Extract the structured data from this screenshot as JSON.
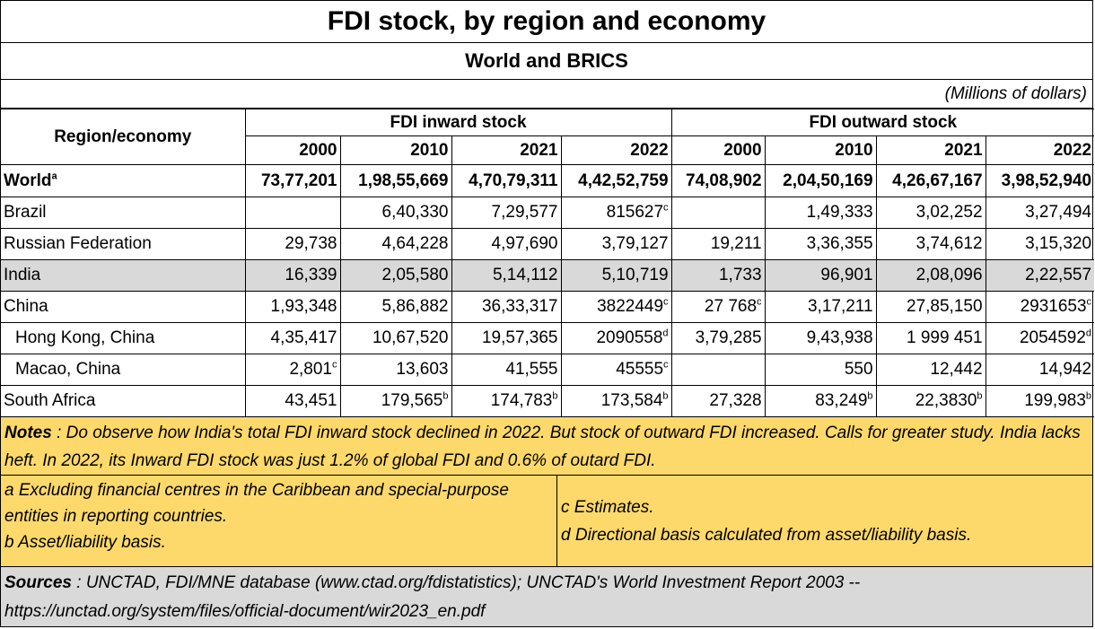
{
  "title": "FDI stock, by region and economy",
  "subtitle": "World and BRICS",
  "units": "(Millions of dollars)",
  "headers": {
    "region": "Region/economy",
    "inward": "FDI inward stock",
    "outward": "FDI outward stock",
    "years": [
      "2000",
      "2010",
      "2021",
      "2022",
      "2000",
      "2010",
      "2021",
      "2022"
    ]
  },
  "rows": [
    {
      "name": "World",
      "sup": "a",
      "cells": [
        {
          "v": "73,77,201",
          "s": ""
        },
        {
          "v": "1,98,55,669",
          "s": ""
        },
        {
          "v": "4,70,79,311",
          "s": ""
        },
        {
          "v": "4,42,52,759",
          "s": ""
        },
        {
          "v": "74,08,902",
          "s": ""
        },
        {
          "v": "2,04,50,169",
          "s": ""
        },
        {
          "v": "4,26,67,167",
          "s": ""
        },
        {
          "v": "3,98,52,940",
          "s": ""
        }
      ]
    },
    {
      "name": "Brazil",
      "sup": "",
      "cells": [
        {
          "v": "",
          "s": ""
        },
        {
          "v": "6,40,330",
          "s": ""
        },
        {
          "v": "7,29,577",
          "s": ""
        },
        {
          "v": "815627",
          "s": "c"
        },
        {
          "v": "",
          "s": ""
        },
        {
          "v": "1,49,333",
          "s": ""
        },
        {
          "v": "3,02,252",
          "s": ""
        },
        {
          "v": "3,27,494",
          "s": ""
        }
      ]
    },
    {
      "name": "Russian Federation",
      "sup": "",
      "cells": [
        {
          "v": "29,738",
          "s": ""
        },
        {
          "v": "4,64,228",
          "s": ""
        },
        {
          "v": "4,97,690",
          "s": ""
        },
        {
          "v": "3,79,127",
          "s": ""
        },
        {
          "v": "19,211",
          "s": ""
        },
        {
          "v": "3,36,355",
          "s": ""
        },
        {
          "v": "3,74,612",
          "s": ""
        },
        {
          "v": "3,15,320",
          "s": ""
        }
      ]
    },
    {
      "name": "India",
      "sup": "",
      "cells": [
        {
          "v": "16,339",
          "s": ""
        },
        {
          "v": "2,05,580",
          "s": ""
        },
        {
          "v": "5,14,112",
          "s": ""
        },
        {
          "v": "5,10,719",
          "s": ""
        },
        {
          "v": "1,733",
          "s": ""
        },
        {
          "v": "96,901",
          "s": ""
        },
        {
          "v": "2,08,096",
          "s": ""
        },
        {
          "v": "2,22,557",
          "s": ""
        }
      ]
    },
    {
      "name": "China",
      "sup": "",
      "cells": [
        {
          "v": "1,93,348",
          "s": ""
        },
        {
          "v": "5,86,882",
          "s": ""
        },
        {
          "v": "36,33,317",
          "s": ""
        },
        {
          "v": "3822449",
          "s": "c"
        },
        {
          "v": "27 768",
          "s": "c"
        },
        {
          "v": "3,17,211",
          "s": ""
        },
        {
          "v": "27,85,150",
          "s": ""
        },
        {
          "v": "2931653",
          "s": "c"
        }
      ]
    },
    {
      "name": "Hong Kong, China",
      "sup": "",
      "cells": [
        {
          "v": "4,35,417",
          "s": ""
        },
        {
          "v": "10,67,520",
          "s": ""
        },
        {
          "v": "19,57,365",
          "s": ""
        },
        {
          "v": "2090558",
          "s": "d"
        },
        {
          "v": "3,79,285",
          "s": ""
        },
        {
          "v": "9,43,938",
          "s": ""
        },
        {
          "v": "1 999 451",
          "s": ""
        },
        {
          "v": "2054592",
          "s": "d"
        }
      ]
    },
    {
      "name": "Macao, China",
      "sup": "",
      "cells": [
        {
          "v": "2,801",
          "s": "c"
        },
        {
          "v": "13,603",
          "s": ""
        },
        {
          "v": "41,555",
          "s": ""
        },
        {
          "v": "45555",
          "s": "c"
        },
        {
          "v": "",
          "s": ""
        },
        {
          "v": "550",
          "s": ""
        },
        {
          "v": "12,442",
          "s": ""
        },
        {
          "v": "14,942",
          "s": ""
        }
      ]
    },
    {
      "name": "South Africa",
      "sup": "",
      "cells": [
        {
          "v": "43,451",
          "s": ""
        },
        {
          "v": "179,565",
          "s": "b"
        },
        {
          "v": "174,783",
          "s": "b"
        },
        {
          "v": "173,584",
          "s": "b"
        },
        {
          "v": "27,328",
          "s": ""
        },
        {
          "v": "83,249",
          "s": "b"
        },
        {
          "v": "22,3830",
          "s": "b"
        },
        {
          "v": "199,983",
          "s": "b"
        }
      ]
    }
  ],
  "notes": {
    "label": "Notes",
    "text": " : Do observe how India's total FDI inward stock declined in 2022.  But stock of outward FDI increased.  Calls for greater study.  India lacks heft.  In 2022, its Inward FDI stock was just 1.2% of global FDI and 0.6% of outard FDI."
  },
  "footnotes": {
    "a": "a Excluding financial centres in the Caribbean and special-purpose entities in reporting countries.",
    "b": "b Asset/liability basis.",
    "c": "c Estimates.",
    "d": "d Directional basis calculated from asset/liability basis."
  },
  "sources": {
    "label": "Sources",
    "text": " : UNCTAD, FDI/MNE database (www.ctad.org/fdistatistics); UNCTAD's World Investment Report 2003 -- https://unctad.org/system/files/official-document/wir2023_en.pdf"
  },
  "colors": {
    "notes_bg": "#fcd96a",
    "highlight_bg": "#d9d9d9"
  }
}
